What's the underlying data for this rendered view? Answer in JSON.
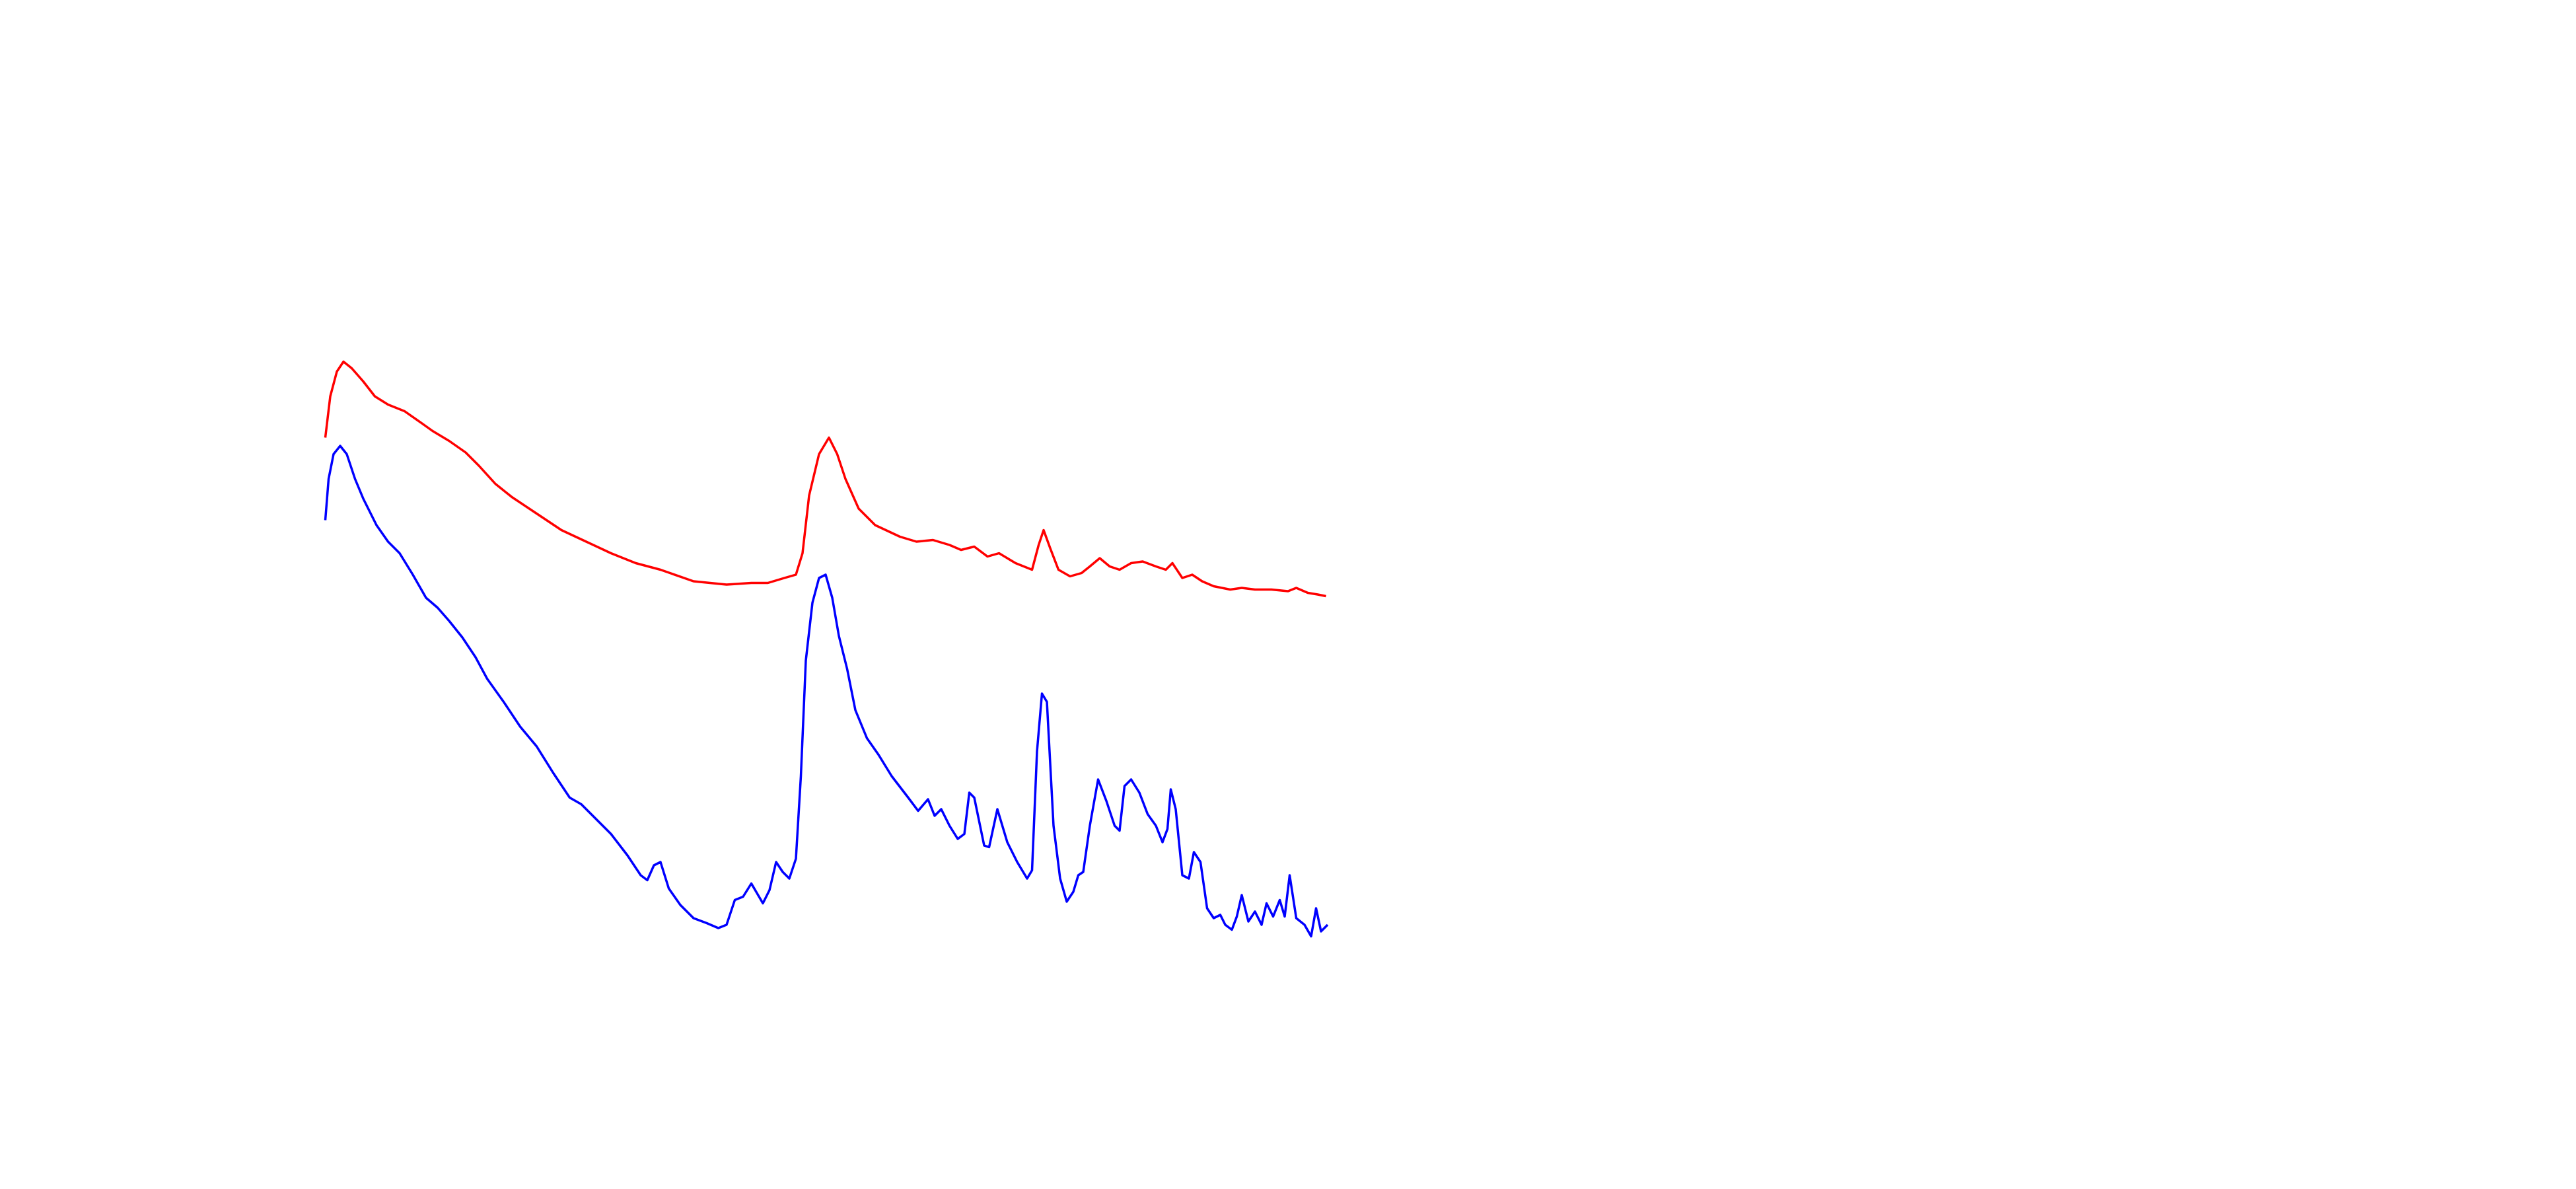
{
  "chart_data": {
    "type": "line",
    "xlim": [
      0,
      607
    ],
    "ylim": [
      0,
      380
    ],
    "series": [
      {
        "color": "#ff0000",
        "x": [
          0,
          3,
          7,
          11,
          16,
          23,
          30,
          38,
          48,
          58,
          65,
          75,
          85,
          93,
          103,
          113,
          128,
          143,
          158,
          173,
          188,
          203,
          223,
          243,
          258,
          268,
          278,
          285,
          289,
          293,
          299,
          305,
          310,
          315,
          323,
          333,
          348,
          358,
          368,
          378,
          385,
          393,
          401,
          408,
          418,
          428,
          432,
          435,
          439,
          444,
          451,
          458,
          463,
          469,
          475,
          481,
          488,
          495,
          503,
          509,
          513,
          519,
          525,
          531,
          538,
          548,
          555,
          563,
          573,
          583,
          588,
          595,
          601,
          606
        ],
        "values": [
          315,
          340,
          355,
          361,
          357,
          349,
          340,
          335,
          331,
          324,
          319,
          313,
          306,
          298,
          287,
          279,
          269,
          259,
          252,
          245,
          239,
          235,
          228,
          226,
          227,
          227,
          230,
          232,
          245,
          280,
          305,
          315,
          305,
          290,
          272,
          262,
          255,
          252,
          253,
          250,
          247,
          249,
          243,
          245,
          239,
          235,
          250,
          259,
          248,
          235,
          231,
          233,
          237,
          242,
          237,
          235,
          239,
          240,
          237,
          235,
          239,
          230,
          232,
          228,
          225,
          223,
          224,
          223,
          223,
          222,
          224,
          221,
          220,
          219
        ]
      },
      {
        "color": "#0000ff",
        "x": [
          0,
          2,
          5,
          9,
          13,
          18,
          23,
          31,
          38,
          45,
          53,
          61,
          68,
          75,
          83,
          91,
          98,
          108,
          118,
          128,
          138,
          148,
          155,
          163,
          173,
          183,
          191,
          195,
          199,
          203,
          208,
          215,
          223,
          231,
          238,
          243,
          248,
          253,
          258,
          265,
          269,
          273,
          277,
          281,
          285,
          288,
          291,
          295,
          299,
          303,
          307,
          311,
          316,
          321,
          328,
          335,
          343,
          353,
          359,
          365,
          369,
          373,
          378,
          383,
          387,
          390,
          393,
          399,
          402,
          407,
          413,
          419,
          425,
          428,
          431,
          434,
          437,
          441,
          445,
          449,
          453,
          456,
          459,
          463,
          468,
          473,
          478,
          481,
          484,
          488,
          493,
          498,
          503,
          507,
          510,
          512,
          515,
          519,
          523,
          526,
          530,
          534,
          538,
          542,
          545,
          549,
          552,
          555,
          559,
          563,
          567,
          570,
          574,
          578,
          581,
          584,
          588,
          593,
          597,
          600,
          603,
          607
        ],
        "values": [
          265,
          290,
          305,
          310,
          305,
          290,
          278,
          262,
          252,
          245,
          232,
          218,
          212,
          204,
          194,
          182,
          169,
          155,
          140,
          128,
          112,
          97,
          93,
          85,
          75,
          62,
          50,
          47,
          56,
          58,
          42,
          32,
          24,
          21,
          18,
          20,
          35,
          37,
          45,
          33,
          41,
          58,
          52,
          48,
          60,
          110,
          180,
          215,
          230,
          232,
          218,
          195,
          175,
          150,
          133,
          123,
          110,
          97,
          89,
          96,
          86,
          90,
          80,
          72,
          75,
          100,
          97,
          68,
          67,
          90,
          70,
          58,
          48,
          53,
          125,
          160,
          155,
          80,
          48,
          34,
          40,
          50,
          52,
          80,
          108,
          95,
          80,
          77,
          104,
          108,
          100,
          87,
          80,
          70,
          78,
          102,
          90,
          50,
          48,
          64,
          58,
          30,
          24,
          26,
          20,
          17,
          25,
          38,
          22,
          28,
          20,
          33,
          25,
          35,
          25,
          50,
          24,
          20,
          13,
          30,
          16,
          20
        ]
      }
    ]
  }
}
